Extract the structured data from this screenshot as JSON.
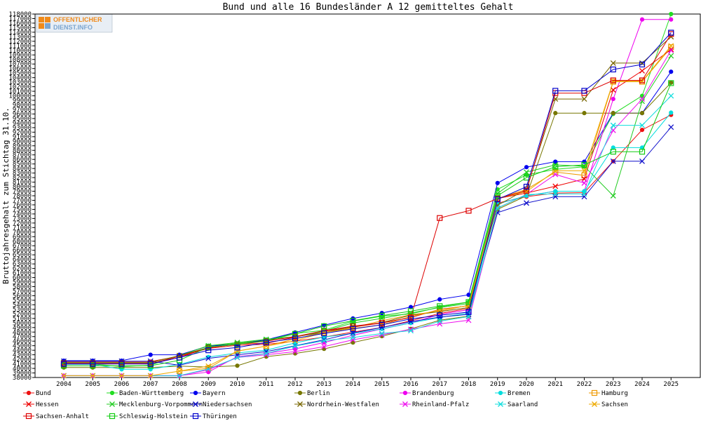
{
  "chart_data": {
    "type": "line",
    "title": "Bund und alle 16 Bundesländer A 12 gemitteltes Gehalt",
    "ylabel": "Bruttojahresgehalt zum Stichtag 31.10.",
    "xlabel": "",
    "ylim": [
      38000,
      118000
    ],
    "y_tick_step": 1000,
    "x": [
      "2004",
      "2005",
      "2006",
      "2007",
      "2008",
      "2009",
      "2010",
      "2011",
      "2012",
      "2013",
      "2014",
      "2015",
      "2016",
      "2017",
      "2018",
      "2019",
      "2020",
      "2021",
      "2022",
      "2023",
      "2024",
      "2025"
    ],
    "grid": false,
    "legend_position": "bottom",
    "series": [
      {
        "name": "Bund",
        "color": "#ee1111",
        "marker": "dot",
        "values": [
          41500,
          41500,
          41500,
          41500,
          42700,
          44400,
          45100,
          45300,
          46000,
          46900,
          48000,
          49000,
          50500,
          52100,
          53200,
          76400,
          77800,
          78600,
          78700,
          85600,
          92500,
          95800
        ]
      },
      {
        "name": "Baden-Württemberg",
        "color": "#22dd22",
        "marker": "dot",
        "values": [
          41000,
          41000,
          40400,
          40700,
          42900,
          45000,
          45500,
          46300,
          47700,
          48400,
          50400,
          51500,
          52000,
          53500,
          54600,
          79400,
          82600,
          83800,
          84400,
          96000,
          100000,
          118000
        ]
      },
      {
        "name": "Bayern",
        "color": "#0000ee",
        "marker": "dot",
        "values": [
          41700,
          41700,
          41700,
          43000,
          43000,
          44900,
          45300,
          46300,
          47900,
          49500,
          51000,
          52200,
          53500,
          55200,
          56200,
          80800,
          84300,
          85500,
          85500,
          96200,
          96200,
          105300
        ]
      },
      {
        "name": "Berlin",
        "color": "#777700",
        "marker": "dot",
        "values": [
          40200,
          40200,
          40200,
          40200,
          40500,
          40300,
          40600,
          42600,
          43300,
          44300,
          45700,
          47100,
          48700,
          50600,
          51500,
          75000,
          78000,
          96200,
          96200,
          96200,
          96200,
          102900
        ]
      },
      {
        "name": "Brandenburg",
        "color": "#ee00ee",
        "marker": "dot",
        "values": [
          38400,
          38400,
          38400,
          38400,
          38400,
          39200,
          42600,
          43300,
          44300,
          45700,
          47300,
          48700,
          50000,
          51900,
          52900,
          76200,
          78000,
          79000,
          79000,
          99300,
          116800,
          116800
        ]
      },
      {
        "name": "Bremen",
        "color": "#00dddd",
        "marker": "dot",
        "values": [
          40900,
          40900,
          39800,
          39800,
          40900,
          42500,
          43400,
          44000,
          45600,
          46900,
          47700,
          48700,
          50000,
          51200,
          52200,
          76200,
          78000,
          79000,
          79000,
          88600,
          88600,
          96300
        ]
      },
      {
        "name": "Hamburg",
        "color": "#ee9900",
        "marker": "square",
        "values": [
          null,
          null,
          null,
          null,
          39400,
          40000,
          43800,
          44900,
          46500,
          47900,
          49000,
          50500,
          51800,
          52600,
          53900,
          77400,
          79400,
          83200,
          82500,
          103100,
          103100,
          110700
        ]
      },
      {
        "name": "Hessen",
        "color": "#ee0000",
        "marker": "x",
        "values": [
          41000,
          41000,
          41000,
          41000,
          42700,
          44500,
          45400,
          45500,
          46900,
          48200,
          49100,
          50000,
          51200,
          53000,
          53800,
          77400,
          78600,
          80100,
          81700,
          101300,
          105500,
          110200
        ]
      },
      {
        "name": "Mecklenburg-Vorpommern",
        "color": "#22cc22",
        "marker": "x",
        "values": [
          41300,
          41300,
          41300,
          41300,
          42800,
          45000,
          45700,
          46400,
          47000,
          48200,
          50000,
          51000,
          52200,
          53400,
          54300,
          78500,
          83200,
          84800,
          84500,
          78000,
          98800,
          108800
        ]
      },
      {
        "name": "Niedersachsen",
        "color": "#1111cc",
        "marker": "x",
        "values": [
          41600,
          41600,
          41600,
          41600,
          40700,
          42200,
          43000,
          43700,
          45000,
          46300,
          47800,
          49000,
          50300,
          51300,
          51900,
          74300,
          76400,
          77800,
          77800,
          85600,
          85600,
          93100
        ]
      },
      {
        "name": "Nordrhein-Westfalen",
        "color": "#776600",
        "marker": "x",
        "values": [
          41300,
          41300,
          41300,
          41300,
          42800,
          44600,
          45400,
          46100,
          47000,
          47900,
          49200,
          50100,
          51700,
          52500,
          53400,
          75900,
          79400,
          99300,
          99300,
          107200,
          107200,
          113000
        ]
      },
      {
        "name": "Rheinland-Pfalz",
        "color": "#ee11ee",
        "marker": "x",
        "values": [
          38400,
          38400,
          38400,
          38400,
          38400,
          39700,
          42400,
          43000,
          43700,
          44800,
          46300,
          47400,
          48600,
          49800,
          50600,
          75300,
          78300,
          82700,
          80800,
          92400,
          99300,
          110000
        ]
      },
      {
        "name": "Saarland",
        "color": "#11dddd",
        "marker": "x",
        "values": [
          38400,
          38400,
          38400,
          38400,
          38400,
          39900,
          42400,
          43300,
          44900,
          46100,
          46800,
          47700,
          48300,
          50400,
          51400,
          75300,
          78300,
          78400,
          78400,
          93500,
          93500,
          100000
        ]
      },
      {
        "name": "Sachsen",
        "color": "#eeaa00",
        "marker": "x",
        "values": [
          38400,
          38400,
          38400,
          38400,
          39400,
          40500,
          43800,
          44900,
          46100,
          47900,
          48800,
          49600,
          51400,
          52900,
          53800,
          77400,
          78900,
          83500,
          83500,
          103200,
          103200,
          111000
        ]
      },
      {
        "name": "Sachsen-Anhalt",
        "color": "#dd0000",
        "marker": "square",
        "values": [
          41100,
          41100,
          41100,
          41100,
          42400,
          44600,
          45300,
          46000,
          47000,
          48300,
          49300,
          50000,
          51200,
          73100,
          74700,
          77400,
          79100,
          100600,
          100600,
          103400,
          103400,
          113600
        ]
      },
      {
        "name": "Schleswig-Holstein",
        "color": "#11cc11",
        "marker": "square",
        "values": [
          40600,
          40600,
          40600,
          40600,
          41800,
          44700,
          45300,
          46100,
          47600,
          49300,
          50500,
          51600,
          52600,
          53700,
          54600,
          78000,
          82000,
          84400,
          84800,
          87700,
          87700,
          102800
        ]
      },
      {
        "name": "Thüringen",
        "color": "#0000cc",
        "marker": "square",
        "values": [
          41000,
          41000,
          41000,
          41000,
          42400,
          44000,
          44600,
          45700,
          46600,
          47700,
          48700,
          49600,
          50900,
          51700,
          52400,
          77200,
          80000,
          101100,
          101100,
          105800,
          106900,
          113900
        ]
      }
    ]
  }
}
